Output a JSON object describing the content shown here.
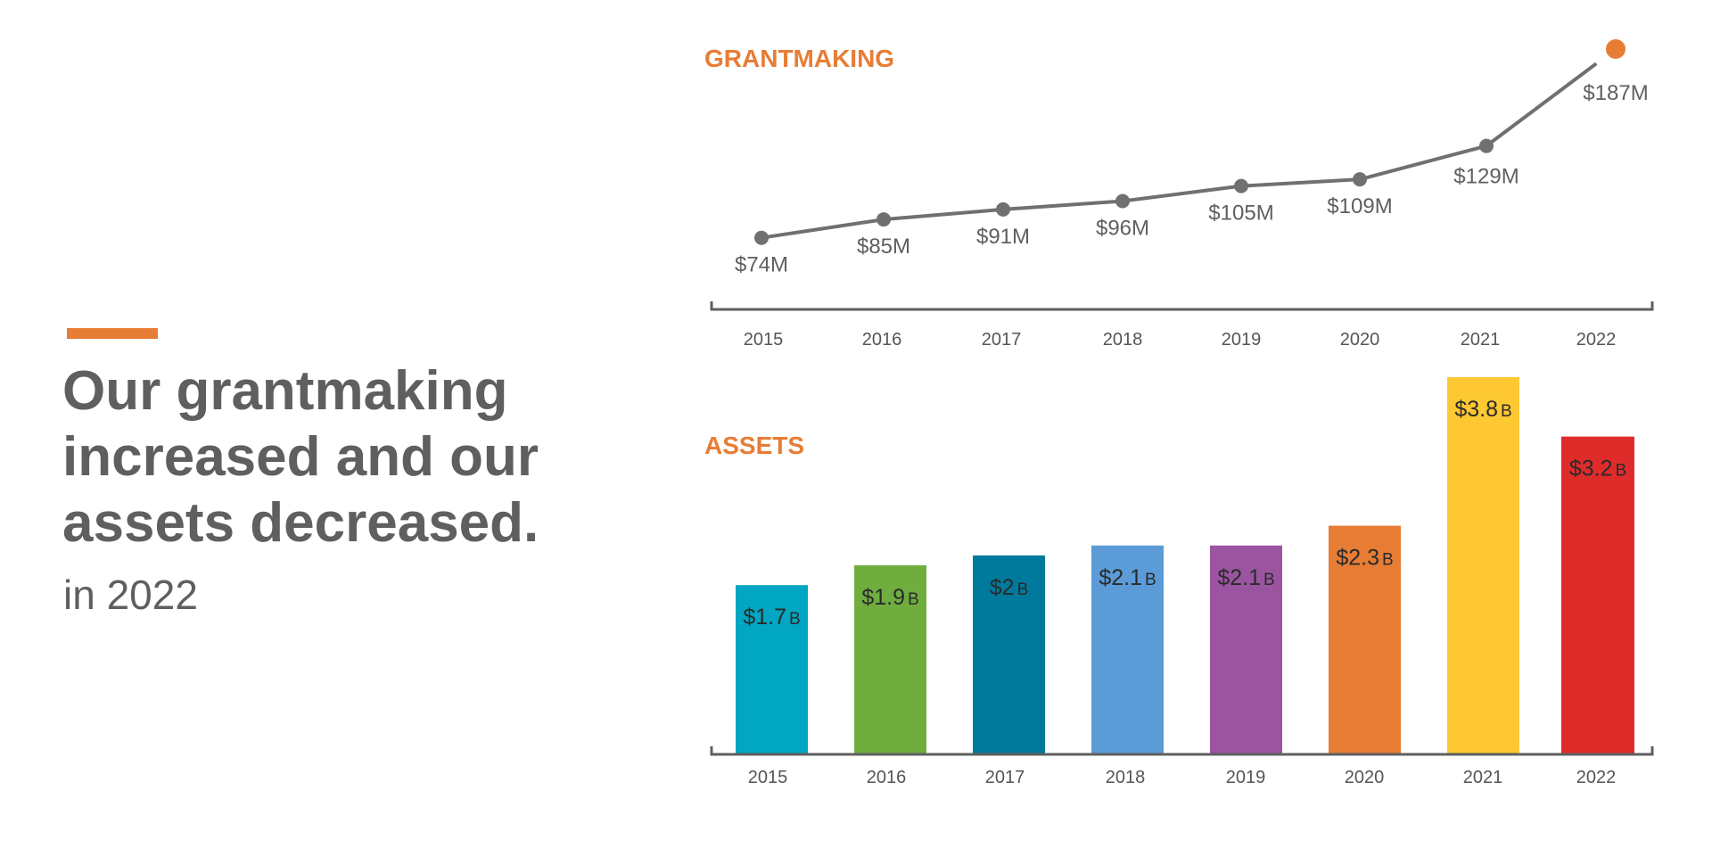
{
  "headline": {
    "lines": [
      "Our grantmaking",
      "increased and our",
      "assets decreased."
    ],
    "subtitle": "in 2022"
  },
  "colors": {
    "accent": "#E77D35",
    "text": "#5F5F5F",
    "line": "#707070",
    "axis": "#5F5F5F"
  },
  "chart_data": [
    {
      "type": "line",
      "title": "GRANTMAKING",
      "categories": [
        "2015",
        "2016",
        "2017",
        "2018",
        "2019",
        "2020",
        "2021",
        "2022"
      ],
      "values": [
        74,
        85,
        91,
        96,
        105,
        109,
        129,
        187
      ],
      "labels": [
        "$74M",
        "$85M",
        "$91M",
        "$96M",
        "$105M",
        "$109M",
        "$129M",
        "$187M"
      ],
      "unit": "M",
      "highlight_color": "#E77D35",
      "line_color": "#707070"
    },
    {
      "type": "bar",
      "title": "ASSETS",
      "categories": [
        "2015",
        "2016",
        "2017",
        "2018",
        "2019",
        "2020",
        "2021",
        "2022"
      ],
      "values": [
        1.7,
        1.9,
        2.0,
        2.1,
        2.1,
        2.3,
        3.8,
        3.2
      ],
      "labels": [
        {
          "num": "$1.7",
          "unit": "B"
        },
        {
          "num": "$1.9",
          "unit": "B"
        },
        {
          "num": "$2",
          "unit": "B"
        },
        {
          "num": "$2.1",
          "unit": "B"
        },
        {
          "num": "$2.1",
          "unit": "B"
        },
        {
          "num": "$2.3",
          "unit": "B"
        },
        {
          "num": "$3.8",
          "unit": "B"
        },
        {
          "num": "$3.2",
          "unit": "B"
        }
      ],
      "colors": [
        "#00A6C2",
        "#6FAD3F",
        "#007A9C",
        "#5B9BD8",
        "#9B55A0",
        "#E77D35",
        "#FDC832",
        "#E02B2B"
      ]
    }
  ]
}
